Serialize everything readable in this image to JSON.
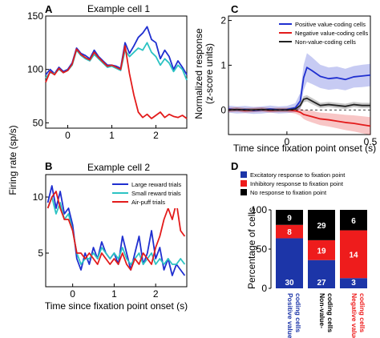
{
  "colors": {
    "blue": "#1f2fd0",
    "cyan": "#2cc3c3",
    "red": "#e31b1b",
    "gray": "#222222",
    "bar_blue": "#1c35a8",
    "bar_red": "#ee1c1c",
    "bar_black": "#000000"
  },
  "panel_labels": {
    "A": "A",
    "B": "B",
    "C": "C",
    "D": "D"
  },
  "shared": {
    "ylabel_AB": "Firing rate (sp/s)"
  },
  "chart_data": [
    {
      "id": "A",
      "type": "line",
      "title": "Example cell 1",
      "xlabel": "",
      "ylabel": "",
      "xlim": [
        -0.5,
        2.7
      ],
      "ylim": [
        45,
        150
      ],
      "xticks": [
        "0",
        "1",
        "2"
      ],
      "yticks": [
        "50",
        "100",
        "150"
      ],
      "x": [
        -0.5,
        -0.4,
        -0.3,
        -0.2,
        -0.1,
        0.0,
        0.1,
        0.2,
        0.3,
        0.4,
        0.5,
        0.6,
        0.7,
        0.8,
        0.9,
        1.0,
        1.1,
        1.2,
        1.3,
        1.4,
        1.5,
        1.6,
        1.7,
        1.8,
        1.9,
        2.0,
        2.1,
        2.2,
        2.3,
        2.4,
        2.5,
        2.6,
        2.7
      ],
      "series": [
        {
          "color_key": "blue",
          "values": [
            95,
            100,
            96,
            102,
            98,
            100,
            106,
            120,
            115,
            113,
            110,
            118,
            112,
            108,
            104,
            104,
            103,
            101,
            125,
            115,
            122,
            130,
            134,
            140,
            128,
            125,
            110,
            118,
            112,
            100,
            108,
            102,
            95
          ]
        },
        {
          "color_key": "cyan",
          "values": [
            92,
            97,
            96,
            100,
            97,
            99,
            104,
            118,
            113,
            110,
            108,
            114,
            110,
            106,
            102,
            103,
            101,
            99,
            118,
            112,
            116,
            120,
            118,
            125,
            116,
            112,
            104,
            110,
            106,
            98,
            104,
            100,
            90
          ]
        },
        {
          "color_key": "red",
          "values": [
            88,
            98,
            95,
            101,
            97,
            99,
            105,
            119,
            114,
            111,
            109,
            116,
            111,
            107,
            103,
            104,
            102,
            100,
            122,
            96,
            76,
            60,
            55,
            58,
            54,
            57,
            60,
            55,
            58,
            56,
            55,
            57,
            54
          ]
        }
      ]
    },
    {
      "id": "B",
      "type": "line",
      "title": "Example cell 2",
      "xlabel": "Time since fixation point onset (s)",
      "ylabel": "",
      "xlim": [
        -0.65,
        2.75
      ],
      "ylim": [
        2,
        12
      ],
      "xticks": [
        "0",
        "1",
        "2"
      ],
      "yticks": [
        "5",
        "10"
      ],
      "legend_placement": "top-right",
      "x": [
        -0.6,
        -0.5,
        -0.4,
        -0.3,
        -0.2,
        -0.1,
        0.0,
        0.1,
        0.2,
        0.3,
        0.4,
        0.5,
        0.6,
        0.7,
        0.8,
        0.9,
        1.0,
        1.1,
        1.2,
        1.3,
        1.4,
        1.5,
        1.6,
        1.7,
        1.8,
        1.9,
        2.0,
        2.1,
        2.2,
        2.3,
        2.4,
        2.5,
        2.6,
        2.7
      ],
      "series": [
        {
          "name": "Large reward trials",
          "color_key": "blue",
          "values": [
            9.5,
            11,
            9,
            10.5,
            8.5,
            9,
            7.5,
            4.5,
            3.5,
            5,
            4,
            5.5,
            4.5,
            6,
            5,
            4.5,
            5,
            4,
            6.5,
            5,
            3.5,
            5,
            6.5,
            4,
            5,
            7,
            4.5,
            5.5,
            3.5,
            4.5,
            3,
            4,
            3.5,
            3
          ]
        },
        {
          "name": "Small reward trials",
          "color_key": "cyan",
          "values": [
            9,
            10,
            8.5,
            9.5,
            8,
            8.5,
            7,
            5,
            4,
            4.5,
            4.5,
            5,
            4.5,
            5.5,
            5,
            4.5,
            5,
            4.5,
            5.5,
            4.5,
            4,
            4.5,
            5,
            4,
            4.5,
            5,
            4,
            4.5,
            4,
            4.5,
            4,
            4,
            4.5,
            4
          ]
        },
        {
          "name": "Air-puff trials",
          "color_key": "red",
          "values": [
            9,
            10,
            10.5,
            9,
            8,
            8,
            7,
            5,
            5,
            4.5,
            5,
            4.5,
            4,
            5,
            4.5,
            4,
            4.5,
            4,
            5,
            4,
            3.5,
            4.5,
            4,
            5,
            4.5,
            4,
            5.5,
            6.5,
            8,
            9,
            8,
            9.5,
            7,
            6.5
          ]
        }
      ]
    },
    {
      "id": "C",
      "type": "line",
      "title": "",
      "xlabel": "Time since fixation point onset (s)",
      "ylabel": "Normalized response (z-score units)",
      "ylabel_lines": [
        "Normalized response",
        "(z-score units)"
      ],
      "xlim": [
        -0.35,
        0.5
      ],
      "ylim": [
        -0.55,
        2.1
      ],
      "xticks": [
        "0",
        "0.5"
      ],
      "yticks": [
        "0",
        "1",
        "2"
      ],
      "legend_placement": "top-right",
      "x": [
        -0.35,
        -0.3,
        -0.25,
        -0.2,
        -0.15,
        -0.1,
        -0.05,
        0.0,
        0.05,
        0.08,
        0.1,
        0.12,
        0.15,
        0.2,
        0.25,
        0.3,
        0.35,
        0.4,
        0.45,
        0.5
      ],
      "series": [
        {
          "name": "Positive value-coding cells",
          "color_key": "blue",
          "values": [
            0.02,
            0.0,
            0.01,
            -0.01,
            0.0,
            0.02,
            0.0,
            0.01,
            0.05,
            0.2,
            0.72,
            0.95,
            0.88,
            0.75,
            0.7,
            0.72,
            0.68,
            0.74,
            0.76,
            0.78
          ],
          "band": [
            0.08,
            0.08,
            0.08,
            0.08,
            0.08,
            0.08,
            0.08,
            0.08,
            0.1,
            0.18,
            0.28,
            0.32,
            0.3,
            0.26,
            0.25,
            0.25,
            0.24,
            0.24,
            0.25,
            0.25
          ]
        },
        {
          "name": "Negative value-coding cells",
          "color_key": "red",
          "values": [
            0.0,
            0.01,
            -0.01,
            0.0,
            0.01,
            -0.01,
            0.0,
            0.0,
            -0.02,
            -0.05,
            -0.1,
            -0.12,
            -0.15,
            -0.2,
            -0.22,
            -0.25,
            -0.28,
            -0.3,
            -0.33,
            -0.36
          ],
          "band": [
            0.05,
            0.05,
            0.05,
            0.05,
            0.05,
            0.05,
            0.05,
            0.05,
            0.06,
            0.08,
            0.1,
            0.12,
            0.13,
            0.14,
            0.15,
            0.16,
            0.17,
            0.18,
            0.19,
            0.2
          ]
        },
        {
          "name": "Non-value-coding cells",
          "color_key": "gray",
          "values": [
            0.0,
            0.01,
            0.0,
            0.0,
            0.01,
            0.0,
            0.0,
            0.0,
            0.02,
            0.1,
            0.24,
            0.26,
            0.2,
            0.1,
            0.12,
            0.1,
            0.08,
            0.12,
            0.1,
            0.1
          ],
          "band": [
            0.04,
            0.04,
            0.04,
            0.04,
            0.04,
            0.04,
            0.04,
            0.04,
            0.05,
            0.06,
            0.07,
            0.07,
            0.07,
            0.06,
            0.06,
            0.06,
            0.06,
            0.06,
            0.06,
            0.06
          ]
        }
      ]
    },
    {
      "id": "D",
      "type": "bar",
      "title": "",
      "xlabel": "",
      "ylabel": "Percentage of cells",
      "ylim": [
        0,
        100
      ],
      "yticks": [
        "0",
        "50",
        "100"
      ],
      "stacked": true,
      "legend_placement": "top",
      "legend": [
        {
          "name": "Excitatory response to fixation point",
          "color_key": "bar_blue"
        },
        {
          "name": "Inhibitory response to fixation point",
          "color_key": "bar_red"
        },
        {
          "name": "No response to fixation point",
          "color_key": "bar_black"
        }
      ],
      "categories": [
        {
          "label_lines": [
            "Positive value-",
            "coding cells"
          ],
          "color_key": "bar_blue"
        },
        {
          "label_lines": [
            "Non-value-",
            "coding cells"
          ],
          "color_key": "bar_black"
        },
        {
          "label_lines": [
            "Negative value-",
            "coding cells"
          ],
          "color_key": "bar_red"
        }
      ],
      "stacks": [
        [
          {
            "segment": "Excitatory",
            "count": "30",
            "color_key": "bar_blue"
          },
          {
            "segment": "Inhibitory",
            "count": "8",
            "color_key": "bar_red"
          },
          {
            "segment": "No response",
            "count": "9",
            "color_key": "bar_black"
          }
        ],
        [
          {
            "segment": "Excitatory",
            "count": "27",
            "color_key": "bar_blue"
          },
          {
            "segment": "Inhibitory",
            "count": "19",
            "color_key": "bar_red"
          },
          {
            "segment": "No response",
            "count": "29",
            "color_key": "bar_black"
          }
        ],
        [
          {
            "segment": "Excitatory",
            "count": "3",
            "color_key": "bar_blue"
          },
          {
            "segment": "Inhibitory",
            "count": "14",
            "color_key": "bar_red"
          },
          {
            "segment": "No response",
            "count": "6",
            "color_key": "bar_black"
          }
        ]
      ]
    }
  ]
}
